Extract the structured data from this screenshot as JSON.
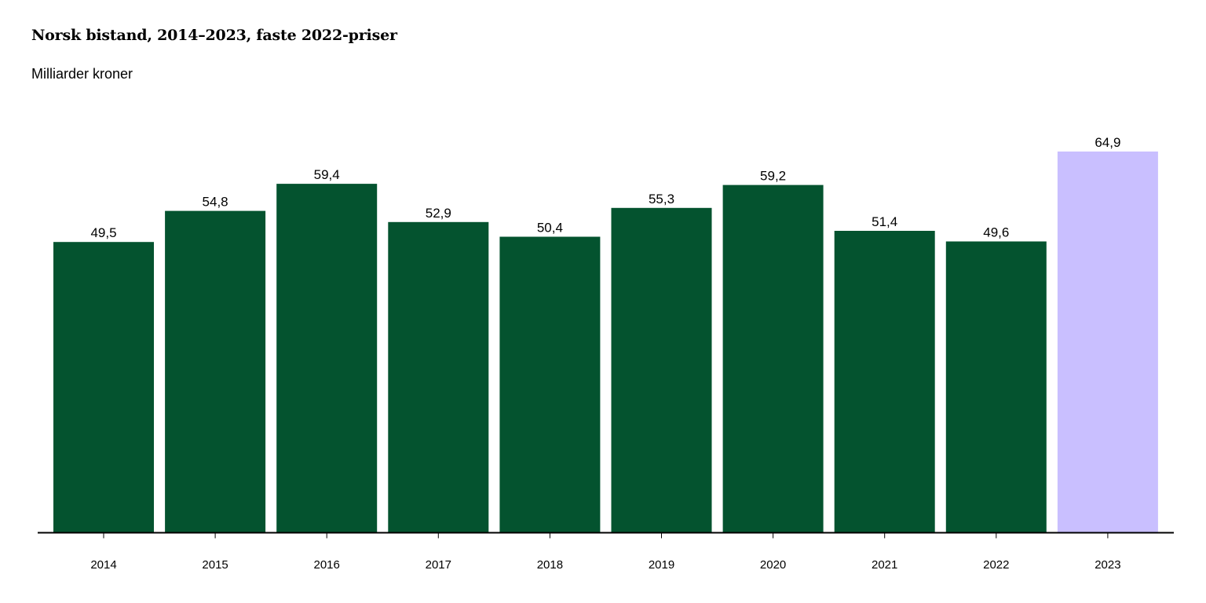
{
  "chart_data": {
    "type": "bar",
    "title": "Norsk bistand, 2014–2023, faste 2022-priser",
    "subtitle": "Milliarder kroner",
    "categories": [
      "2014",
      "2015",
      "2016",
      "2017",
      "2018",
      "2019",
      "2020",
      "2021",
      "2022",
      "2023"
    ],
    "values": [
      49.5,
      54.8,
      59.4,
      52.9,
      50.4,
      55.3,
      59.2,
      51.4,
      49.6,
      64.9
    ],
    "value_labels": [
      "49,5",
      "54,8",
      "59,4",
      "52,9",
      "50,4",
      "55,3",
      "59,2",
      "51,4",
      "49,6",
      "64,9"
    ],
    "ylim": [
      0,
      64.9
    ],
    "grid": false,
    "legend": "none",
    "colors": {
      "default_bar": "#04532f",
      "highlight_bar": "#c9bfff",
      "axis": "#000000"
    },
    "highlight_categories": [
      "2023"
    ]
  }
}
